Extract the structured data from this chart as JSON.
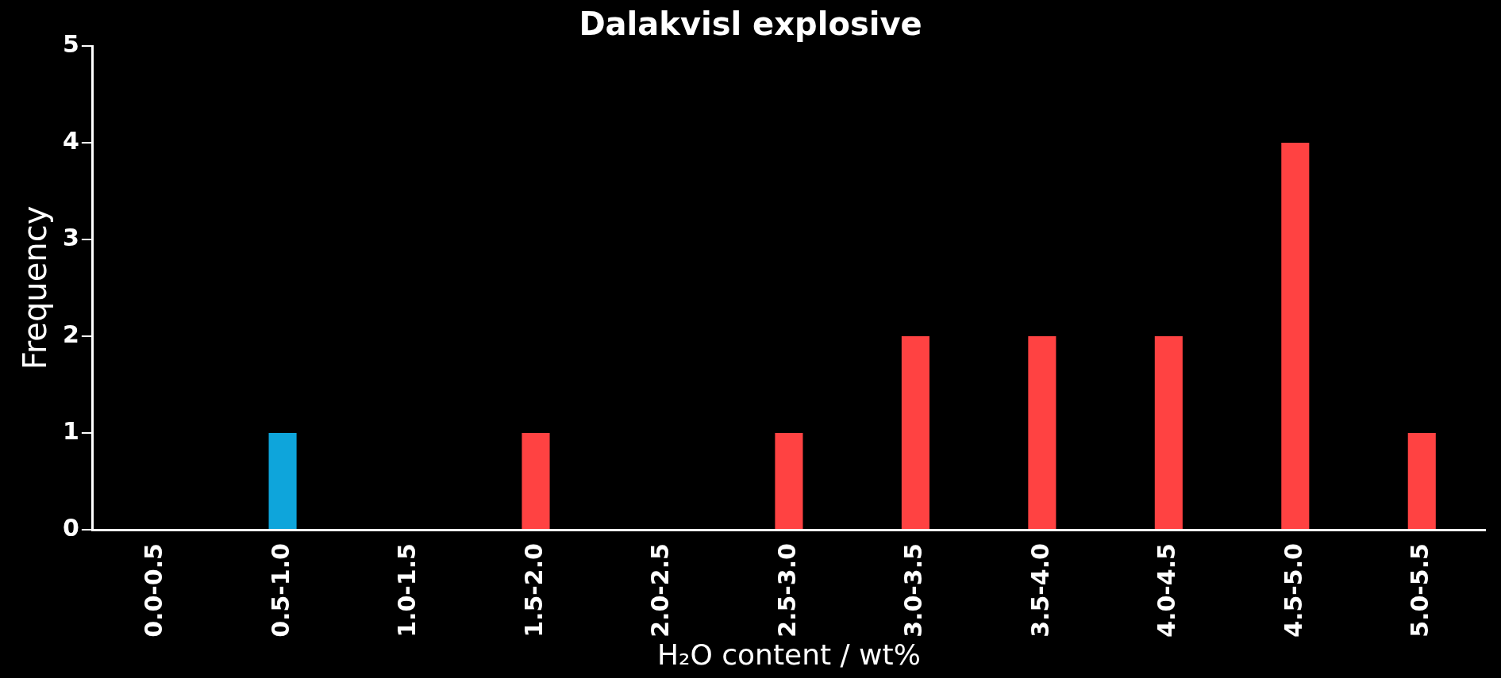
{
  "chart_data": {
    "type": "bar",
    "title": "Dalakvisl explosive",
    "xlabel": "H₂O content / wt%",
    "ylabel": "Frequency",
    "categories": [
      "0.0-0.5",
      "0.5-1.0",
      "1.0-1.5",
      "1.5-2.0",
      "2.0-2.5",
      "2.5-3.0",
      "3.0-3.5",
      "3.5-4.0",
      "4.0-4.5",
      "4.5-5.0",
      "5.0-5.5"
    ],
    "series": [
      {
        "color": "#0ea5db",
        "values": [
          null,
          1,
          null,
          null,
          null,
          null,
          null,
          null,
          null,
          null,
          null
        ]
      },
      {
        "color": "#ff4242",
        "values": [
          0,
          null,
          0,
          1,
          0,
          1,
          2,
          2,
          2,
          4,
          1
        ]
      }
    ],
    "ylim": [
      0,
      5
    ],
    "yticks": [
      0,
      1,
      2,
      3,
      4,
      5
    ],
    "grid": false,
    "legend": false
  }
}
